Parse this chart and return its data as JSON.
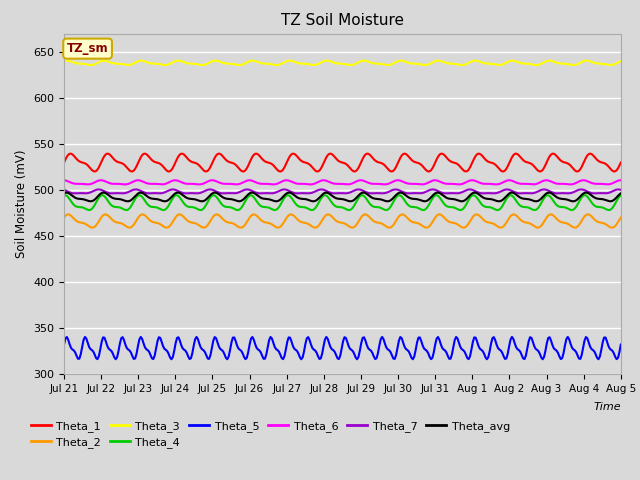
{
  "title": "TZ Soil Moisture",
  "xlabel": "Time",
  "ylabel": "Soil Moisture (mV)",
  "ylim": [
    300,
    670
  ],
  "yticks": [
    300,
    350,
    400,
    450,
    500,
    550,
    600,
    650
  ],
  "background_color": "#d9d9d9",
  "plot_bg_color": "#d9d9d9",
  "annotation_text": "TZ_sm",
  "annotation_color": "#880000",
  "annotation_bg": "#ffffcc",
  "annotation_border": "#ccaa00",
  "series_order": [
    "Theta_1",
    "Theta_2",
    "Theta_3",
    "Theta_4",
    "Theta_5",
    "Theta_6",
    "Theta_7",
    "Theta_avg"
  ],
  "series": {
    "Theta_1": {
      "color": "#ff0000",
      "mean": 530,
      "amp": 8,
      "freq_day": 1.0
    },
    "Theta_2": {
      "color": "#ff9900",
      "mean": 466,
      "amp": 6,
      "freq_day": 1.0
    },
    "Theta_3": {
      "color": "#ffff00",
      "mean": 638,
      "amp": 2,
      "freq_day": 1.0
    },
    "Theta_4": {
      "color": "#00cc00",
      "mean": 485,
      "amp": 7,
      "freq_day": 1.0
    },
    "Theta_5": {
      "color": "#0000ff",
      "mean": 328,
      "amp": 10,
      "freq_day": 2.0
    },
    "Theta_6": {
      "color": "#ff00ff",
      "mean": 508,
      "amp": 2,
      "freq_day": 1.0
    },
    "Theta_7": {
      "color": "#9900cc",
      "mean": 498,
      "amp": 2,
      "freq_day": 1.0
    },
    "Theta_avg": {
      "color": "#000000",
      "mean": 492,
      "amp": 4,
      "freq_day": 1.0
    }
  },
  "num_points": 400,
  "days": 15,
  "xtick_labels": [
    "Jul 21",
    "Jul 22",
    "Jul 23",
    "Jul 24",
    "Jul 25",
    "Jul 26",
    "Jul 27",
    "Jul 28",
    "Jul 29",
    "Jul 30",
    "Jul 31",
    "Aug 1",
    "Aug 2",
    "Aug 3",
    "Aug 4",
    "Aug 5"
  ],
  "legend_row1": [
    "Theta_1",
    "Theta_2",
    "Theta_3",
    "Theta_4",
    "Theta_5",
    "Theta_6"
  ],
  "legend_row2": [
    "Theta_7",
    "Theta_avg"
  ],
  "legend_colors": {
    "Theta_1": "#ff0000",
    "Theta_2": "#ff9900",
    "Theta_3": "#ffff00",
    "Theta_4": "#00cc00",
    "Theta_5": "#0000ff",
    "Theta_6": "#ff00ff",
    "Theta_7": "#9900cc",
    "Theta_avg": "#000000"
  }
}
